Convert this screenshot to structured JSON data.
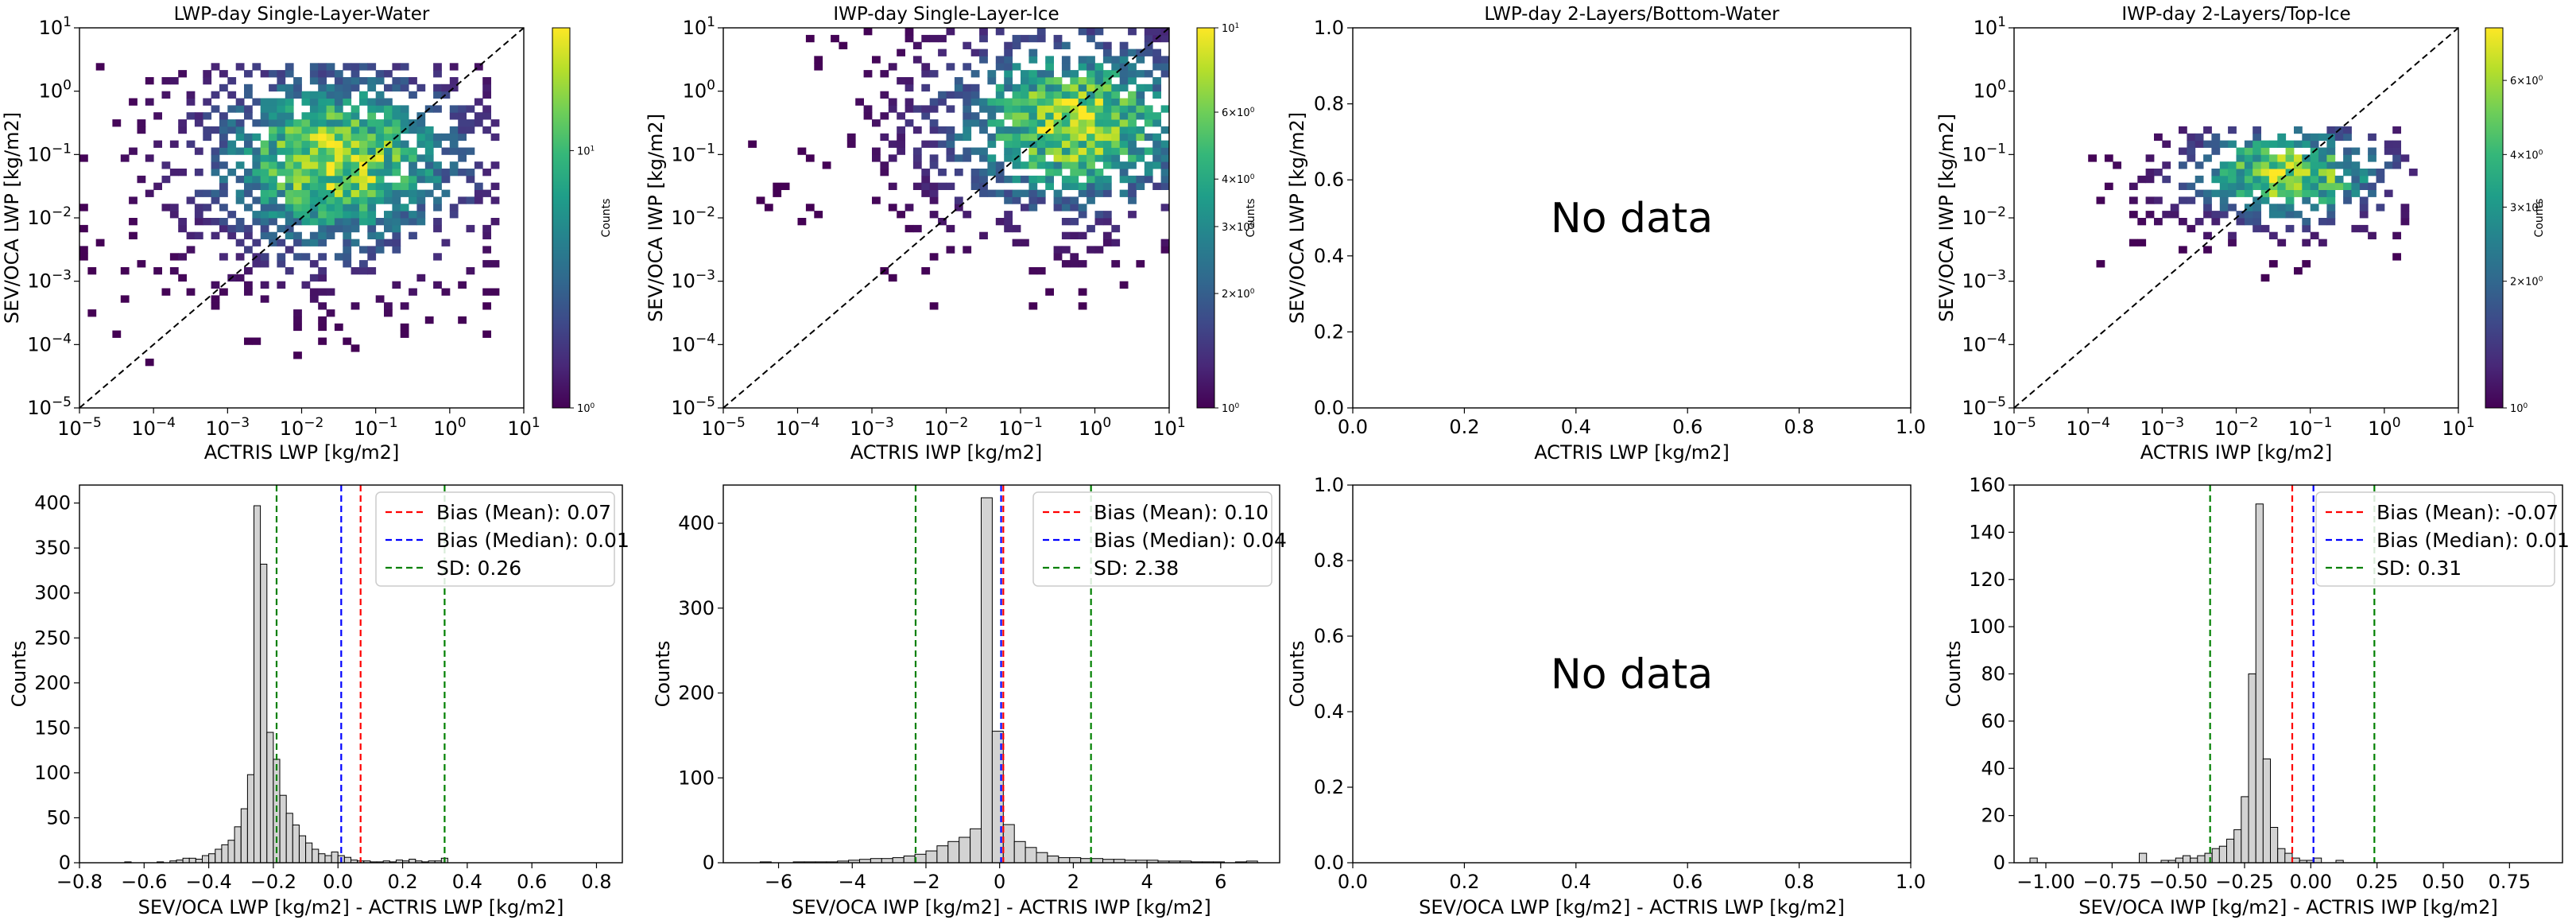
{
  "figure": {
    "no_data_text": "No data"
  },
  "chart_data": [
    {
      "type": "heatmap",
      "title": "LWP-day Single-Layer-Water",
      "xlabel": "ACTRIS LWP [kg/m2]",
      "ylabel": "SEV/OCA LWP [kg/m2]",
      "xscale": "log",
      "yscale": "log",
      "xlim": [
        1e-05,
        10
      ],
      "ylim": [
        1e-05,
        10
      ],
      "x_ticks": [
        "10^-5",
        "10^-4",
        "10^-3",
        "10^-2",
        "10^-1",
        "10^0",
        "10^1"
      ],
      "y_ticks": [
        "10^-5",
        "10^-4",
        "10^-3",
        "10^-2",
        "10^-1",
        "10^0",
        "10^1"
      ],
      "one_to_one_line": true,
      "colorbar": {
        "label": "Counts",
        "scale": "log",
        "range": [
          1,
          30
        ],
        "ticks": [
          "10^0",
          "10^1"
        ]
      },
      "density_center": {
        "x": 0.03,
        "y": 0.08
      },
      "extent_x": [
        1e-05,
        5
      ],
      "extent_y": [
        5e-05,
        3
      ]
    },
    {
      "type": "heatmap",
      "title": "IWP-day Single-Layer-Ice",
      "xlabel": "ACTRIS IWP [kg/m2]",
      "ylabel": "SEV/OCA IWP [kg/m2]",
      "xscale": "log",
      "yscale": "log",
      "xlim": [
        1e-05,
        10
      ],
      "ylim": [
        1e-05,
        10
      ],
      "x_ticks": [
        "10^-5",
        "10^-4",
        "10^-3",
        "10^-2",
        "10^-1",
        "10^0",
        "10^1"
      ],
      "y_ticks": [
        "10^-5",
        "10^-4",
        "10^-3",
        "10^-2",
        "10^-1",
        "10^0",
        "10^1"
      ],
      "one_to_one_line": true,
      "colorbar": {
        "label": "Counts",
        "scale": "log",
        "range": [
          1,
          10
        ],
        "ticks": [
          "10^0",
          "2×10^0",
          "3×10^0",
          "4×10^0",
          "6×10^0",
          "10^1"
        ]
      },
      "density_center": {
        "x": 0.5,
        "y": 0.3
      },
      "extent_x": [
        2e-05,
        10
      ],
      "extent_y": [
        0.0004,
        10
      ]
    },
    {
      "type": "scatter",
      "title": "LWP-day 2-Layers/Bottom-Water",
      "xlabel": "ACTRIS LWP [kg/m2]",
      "ylabel": "SEV/OCA LWP [kg/m2]",
      "xlim": [
        0,
        1
      ],
      "ylim": [
        0,
        1
      ],
      "x_ticks": [
        "0.0",
        "0.2",
        "0.4",
        "0.6",
        "0.8",
        "1.0"
      ],
      "y_ticks": [
        "0.0",
        "0.2",
        "0.4",
        "0.6",
        "0.8",
        "1.0"
      ],
      "annotation": "No data"
    },
    {
      "type": "heatmap",
      "title": "IWP-day 2-Layers/Top-Ice",
      "xlabel": "ACTRIS IWP [kg/m2]",
      "ylabel": "SEV/OCA IWP [kg/m2]",
      "xscale": "log",
      "yscale": "log",
      "xlim": [
        1e-05,
        10
      ],
      "ylim": [
        1e-05,
        10
      ],
      "x_ticks": [
        "10^-5",
        "10^-4",
        "10^-3",
        "10^-2",
        "10^-1",
        "10^0",
        "10^1"
      ],
      "y_ticks": [
        "10^-5",
        "10^-4",
        "10^-3",
        "10^-2",
        "10^-1",
        "10^0",
        "10^1"
      ],
      "one_to_one_line": true,
      "colorbar": {
        "label": "Counts",
        "scale": "log",
        "range": [
          1,
          8
        ],
        "ticks": [
          "10^0",
          "2×10^0",
          "3×10^0",
          "4×10^0",
          "6×10^0"
        ]
      },
      "density_center": {
        "x": 0.05,
        "y": 0.05
      },
      "extent_x": [
        0.0001,
        3
      ],
      "extent_y": [
        0.001,
        0.3
      ]
    },
    {
      "type": "bar",
      "subtype": "histogram",
      "xlabel": "SEV/OCA LWP [kg/m2] - ACTRIS LWP [kg/m2]",
      "ylabel": "Counts",
      "xlim": [
        -0.8,
        0.88
      ],
      "ylim": [
        0,
        420
      ],
      "x_ticks": [
        "−0.8",
        "−0.6",
        "−0.4",
        "−0.2",
        "0.0",
        "0.2",
        "0.4",
        "0.6",
        "0.8"
      ],
      "x_tick_values": [
        -0.8,
        -0.6,
        -0.4,
        -0.2,
        0,
        0.2,
        0.4,
        0.6,
        0.8
      ],
      "y_ticks": [
        "0",
        "50",
        "100",
        "150",
        "200",
        "250",
        "300",
        "350",
        "400"
      ],
      "y_tick_values": [
        0,
        50,
        100,
        150,
        200,
        250,
        300,
        350,
        400
      ],
      "bin_start": -0.66,
      "bin_width": 0.02,
      "values": [
        1,
        0,
        0,
        0,
        0,
        1,
        0,
        2,
        3,
        5,
        5,
        4,
        8,
        10,
        15,
        20,
        25,
        40,
        60,
        98,
        397,
        332,
        145,
        115,
        75,
        55,
        42,
        30,
        22,
        15,
        10,
        8,
        12,
        8,
        6,
        3,
        2,
        2,
        1,
        1,
        2,
        1,
        3,
        2,
        4,
        2,
        1,
        2,
        2,
        5
      ],
      "lines": [
        {
          "label": "Bias (Mean): 0.07",
          "x": 0.07,
          "color": "#ff0000"
        },
        {
          "label": "Bias (Median): 0.01",
          "x": 0.01,
          "color": "#0000ff"
        },
        {
          "label": "SD: 0.26",
          "x": -0.19,
          "color": "#008000"
        },
        {
          "label": "",
          "x": 0.33,
          "color": "#008000"
        }
      ],
      "legend": [
        "Bias (Mean): 0.07",
        "Bias (Median): 0.01",
        "SD: 0.26"
      ]
    },
    {
      "type": "bar",
      "subtype": "histogram",
      "xlabel": "SEV/OCA IWP [kg/m2] - ACTRIS IWP [kg/m2]",
      "ylabel": "Counts",
      "xlim": [
        -7.5,
        7.6
      ],
      "ylim": [
        0,
        445
      ],
      "x_ticks": [
        "−6",
        "−4",
        "−2",
        "0",
        "2",
        "4",
        "6"
      ],
      "x_tick_values": [
        -6,
        -4,
        -2,
        0,
        2,
        4,
        6
      ],
      "y_ticks": [
        "0",
        "100",
        "200",
        "300",
        "400"
      ],
      "y_tick_values": [
        0,
        100,
        200,
        300,
        400
      ],
      "bin_start": -6.5,
      "bin_width": 0.3,
      "values": [
        1,
        0,
        0,
        1,
        1,
        1,
        1,
        2,
        3,
        4,
        5,
        5,
        6,
        8,
        10,
        14,
        20,
        25,
        30,
        40,
        430,
        155,
        45,
        25,
        18,
        12,
        8,
        6,
        6,
        5,
        5,
        4,
        4,
        3,
        3,
        3,
        2,
        2,
        2,
        1,
        1,
        1,
        0,
        1,
        2
      ],
      "lines": [
        {
          "label": "Bias (Mean): 0.10",
          "x": 0.1,
          "color": "#ff0000"
        },
        {
          "label": "Bias (Median): 0.04",
          "x": 0.04,
          "color": "#0000ff"
        },
        {
          "label": "SD: 2.38",
          "x": -2.28,
          "color": "#008000"
        },
        {
          "label": "",
          "x": 2.48,
          "color": "#008000"
        }
      ],
      "legend": [
        "Bias (Mean): 0.10",
        "Bias (Median): 0.04",
        "SD: 2.38"
      ]
    },
    {
      "type": "bar",
      "subtype": "histogram",
      "xlabel": "SEV/OCA LWP [kg/m2] - ACTRIS LWP [kg/m2]",
      "ylabel": "Counts",
      "xlim": [
        0,
        1
      ],
      "ylim": [
        0,
        1
      ],
      "x_ticks": [
        "0.0",
        "0.2",
        "0.4",
        "0.6",
        "0.8",
        "1.0"
      ],
      "y_ticks": [
        "0.0",
        "0.2",
        "0.4",
        "0.6",
        "0.8",
        "1.0"
      ],
      "values": [],
      "annotation": "No data"
    },
    {
      "type": "bar",
      "subtype": "histogram",
      "xlabel": "SEV/OCA IWP [kg/m2] - ACTRIS IWP [kg/m2]",
      "ylabel": "Counts",
      "xlim": [
        -1.12,
        0.95
      ],
      "ylim": [
        0,
        160
      ],
      "x_ticks": [
        "−1.00",
        "−0.75",
        "−0.50",
        "−0.25",
        "0.00",
        "0.25",
        "0.50",
        "0.75"
      ],
      "x_tick_values": [
        -1,
        -0.75,
        -0.5,
        -0.25,
        0,
        0.25,
        0.5,
        0.75
      ],
      "y_ticks": [
        "0",
        "20",
        "40",
        "60",
        "80",
        "100",
        "120",
        "140",
        "160"
      ],
      "y_tick_values": [
        0,
        20,
        40,
        60,
        80,
        100,
        120,
        140,
        160
      ],
      "bin_start": -1.06,
      "bin_width": 0.0275,
      "values": [
        2,
        0,
        0,
        0,
        0,
        0,
        0,
        0,
        0,
        0,
        0,
        0,
        0,
        0,
        0,
        4,
        0,
        0,
        1,
        1,
        2,
        3,
        2,
        3,
        4,
        6,
        7,
        10,
        14,
        28,
        80,
        152,
        44,
        15,
        6,
        4,
        2,
        1,
        1,
        2,
        0,
        0,
        1
      ],
      "lines": [
        {
          "label": "Bias (Mean): -0.07",
          "x": -0.07,
          "color": "#ff0000"
        },
        {
          "label": "Bias (Median): 0.01",
          "x": 0.01,
          "color": "#0000ff"
        },
        {
          "label": "SD: 0.31",
          "x": -0.38,
          "color": "#008000"
        },
        {
          "label": "",
          "x": 0.24,
          "color": "#008000"
        }
      ],
      "legend": [
        "Bias (Mean): -0.07",
        "Bias (Median): 0.01",
        "SD: 0.31"
      ]
    }
  ]
}
